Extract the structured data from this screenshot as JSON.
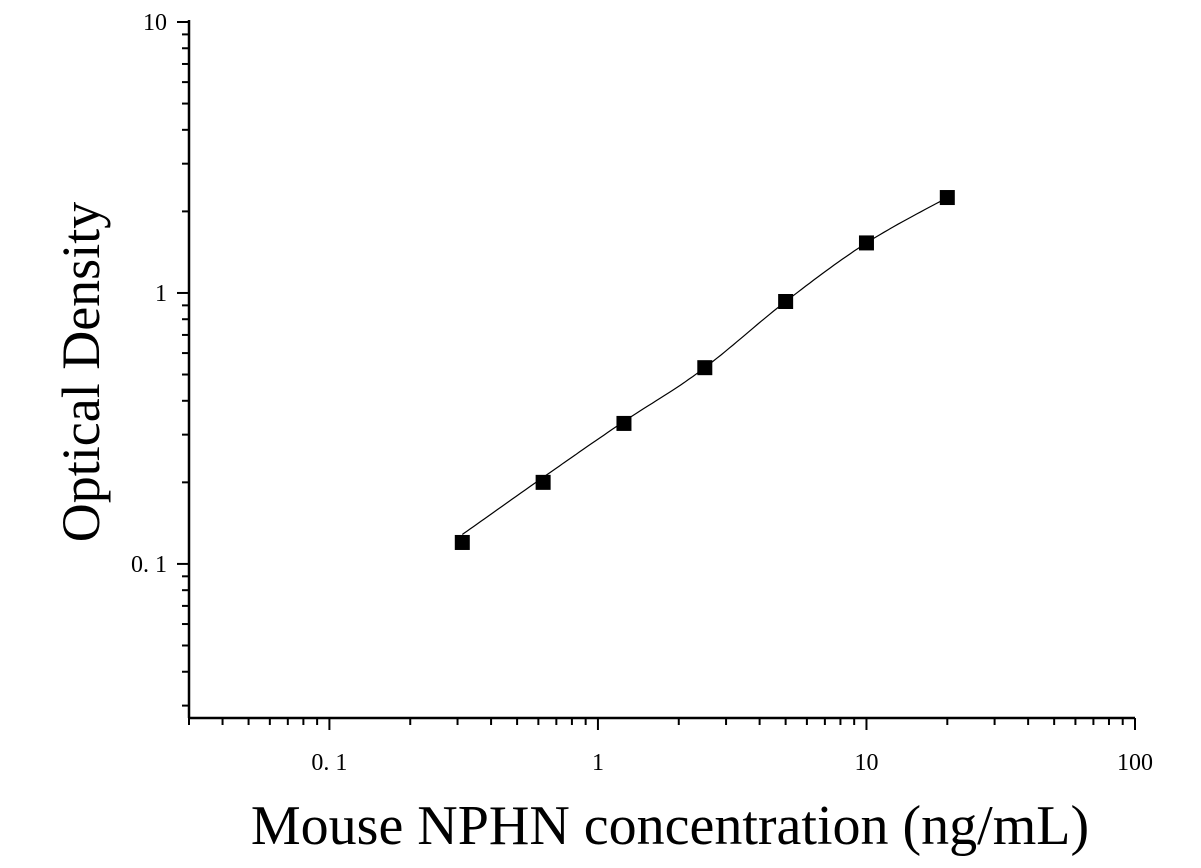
{
  "chart_data": {
    "type": "scatter",
    "title": "",
    "xlabel": "Mouse NPHN concentration (ng/mL)",
    "ylabel": "Optical Density",
    "xscale": "log",
    "yscale": "log",
    "xlim": [
      0.03,
      100
    ],
    "ylim": [
      0.027,
      10
    ],
    "x_ticks": [
      0.1,
      1,
      10,
      100
    ],
    "x_tick_labels": [
      "0. 1",
      "1",
      "10",
      "100"
    ],
    "y_ticks": [
      0.1,
      1,
      10
    ],
    "y_tick_labels": [
      "0. 1",
      "1",
      "10"
    ],
    "grid": false,
    "series": [
      {
        "marker": "square",
        "color": "#000000",
        "fit_line": true,
        "points": [
          {
            "x": 0.3125,
            "y": 0.12
          },
          {
            "x": 0.625,
            "y": 0.2
          },
          {
            "x": 1.25,
            "y": 0.33
          },
          {
            "x": 2.5,
            "y": 0.53
          },
          {
            "x": 5,
            "y": 0.93
          },
          {
            "x": 10,
            "y": 1.53
          },
          {
            "x": 20,
            "y": 2.25
          }
        ]
      }
    ]
  }
}
